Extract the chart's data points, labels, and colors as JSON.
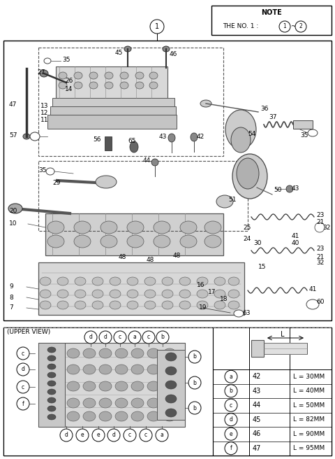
{
  "bg_color": "#ffffff",
  "note_text": "NOTE",
  "note_line1": "THE NO. 1 :  ① ~ ②",
  "upper_view_label": "(UPPER VIEW)",
  "upper_view_letters_top": [
    "d",
    "d",
    "c",
    "a",
    "c",
    "b"
  ],
  "upper_view_letters_left": [
    "c",
    "d",
    "c",
    "f"
  ],
  "upper_view_letters_right": [
    "b",
    "b",
    "b"
  ],
  "upper_view_letters_bottom": [
    "d",
    "e",
    "e",
    "d",
    "c",
    "c",
    "a"
  ],
  "bolt_letters": [
    "a",
    "b",
    "c",
    "d",
    "e",
    "f"
  ],
  "bolt_data": [
    {
      "num": "42",
      "length": "L = 30MM"
    },
    {
      "num": "43",
      "length": "L = 40MM"
    },
    {
      "num": "44",
      "length": "L = 50MM"
    },
    {
      "num": "45",
      "length": "L = 82MM"
    },
    {
      "num": "46",
      "length": "L = 90MM"
    },
    {
      "num": "47",
      "length": "L = 95MM"
    }
  ],
  "figsize": [
    4.8,
    6.56
  ],
  "dpi": 100
}
